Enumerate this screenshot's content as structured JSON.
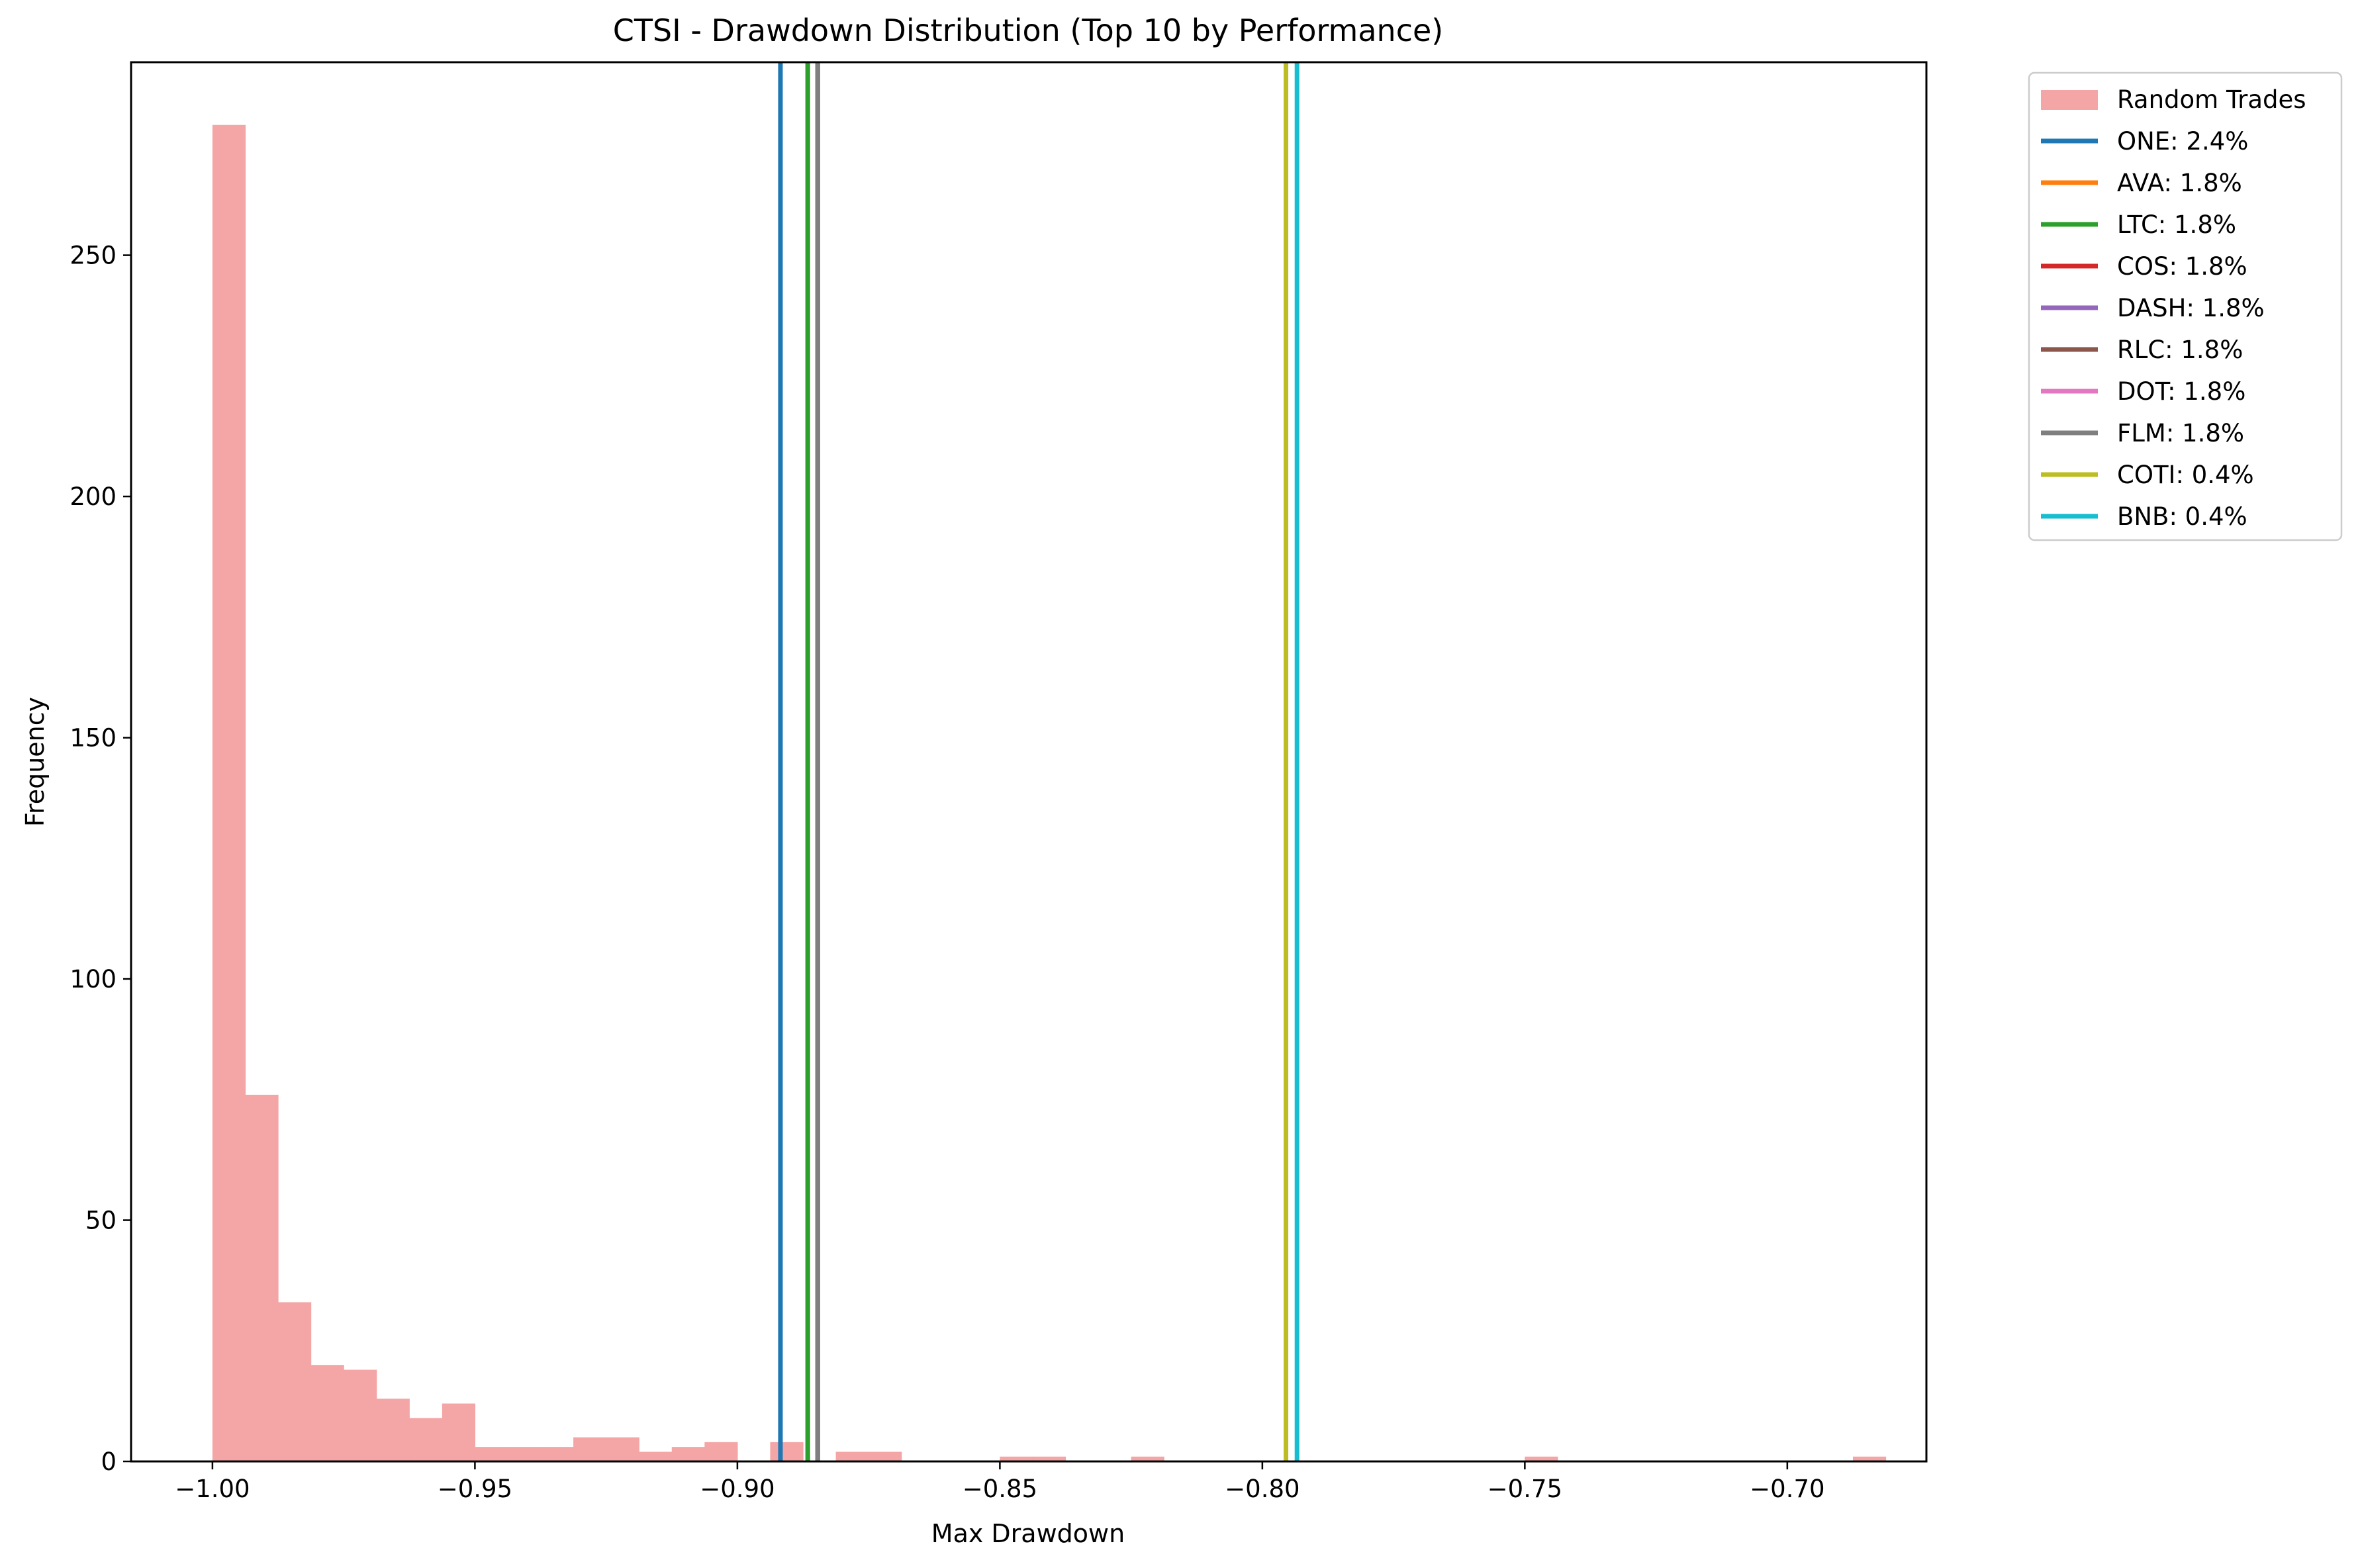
{
  "chart_data": {
    "type": "bar",
    "title": "CTSI - Drawdown Distribution (Top 10 by Performance)",
    "xlabel": "Max Drawdown",
    "ylabel": "Frequency",
    "xlim": [
      -1.0155,
      -0.6735
    ],
    "ylim": [
      0,
      290
    ],
    "x_ticks": [
      -1.0,
      -0.95,
      -0.9,
      -0.85,
      -0.8,
      -0.75,
      -0.7
    ],
    "x_tick_labels": [
      "−1.00",
      "−0.95",
      "−0.90",
      "−0.85",
      "−0.80",
      "−0.75",
      "−0.70"
    ],
    "y_ticks": [
      0,
      50,
      100,
      150,
      200,
      250
    ],
    "y_tick_labels": [
      "0",
      "50",
      "100",
      "150",
      "200",
      "250"
    ],
    "legend_position": "outside-top-right",
    "histogram": {
      "name": "Random Trades",
      "color": "#f4a5a5",
      "bin_start": -1.0,
      "bin_width": 0.00625,
      "counts": [
        277,
        76,
        33,
        20,
        19,
        13,
        9,
        12,
        3,
        3,
        3,
        5,
        5,
        2,
        3,
        4,
        0,
        4,
        0,
        2,
        2,
        0,
        0,
        0,
        1,
        1,
        0,
        0,
        1,
        0,
        0,
        0,
        0,
        0,
        0,
        0,
        0,
        0,
        0,
        0,
        1,
        0,
        0,
        0,
        0,
        0,
        0,
        0,
        0,
        0,
        1
      ]
    },
    "lines": [
      {
        "name": "ONE: 2.4%",
        "x": -0.8918,
        "color": "#1f77b4"
      },
      {
        "name": "AVA: 1.8%",
        "x": -0.8866,
        "color": "#ff7f0e"
      },
      {
        "name": "LTC: 1.8%",
        "x": -0.8866,
        "color": "#2ca02c"
      },
      {
        "name": "COS: 1.8%",
        "x": -0.8847,
        "color": "#d62728"
      },
      {
        "name": "DASH: 1.8%",
        "x": -0.8847,
        "color": "#9467bd"
      },
      {
        "name": "RLC: 1.8%",
        "x": -0.8847,
        "color": "#8c564b"
      },
      {
        "name": "DOT: 1.8%",
        "x": -0.8847,
        "color": "#e377c2"
      },
      {
        "name": "FLM: 1.8%",
        "x": -0.8847,
        "color": "#7f7f7f"
      },
      {
        "name": "COTI: 0.4%",
        "x": -0.7955,
        "color": "#bcbd22"
      },
      {
        "name": "BNB: 0.4%",
        "x": -0.7934,
        "color": "#17becf"
      }
    ]
  }
}
